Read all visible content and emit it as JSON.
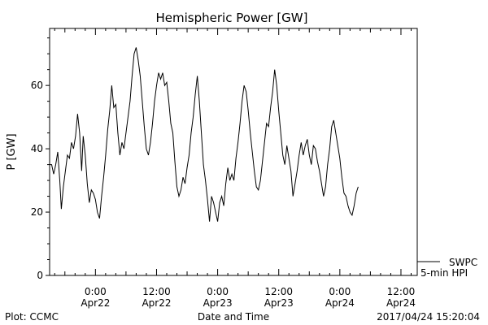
{
  "chart_data": {
    "type": "line",
    "title": "Hemispheric Power [GW]",
    "xlabel": "Date and Time",
    "ylabel": "P [GW]",
    "ylim": [
      0,
      78
    ],
    "x_range_hours": [
      -9.0,
      63.2
    ],
    "x_ticks": [
      {
        "hour": 0,
        "time": "0:00",
        "date": "Apr22"
      },
      {
        "hour": 12,
        "time": "12:00",
        "date": "Apr22"
      },
      {
        "hour": 24,
        "time": "0:00",
        "date": "Apr23"
      },
      {
        "hour": 36,
        "time": "12:00",
        "date": "Apr23"
      },
      {
        "hour": 48,
        "time": "0:00",
        "date": "Apr24"
      },
      {
        "hour": 60,
        "time": "12:00",
        "date": "Apr24"
      }
    ],
    "y_ticks": [
      0,
      20,
      40,
      60
    ],
    "grid": false,
    "legend_position": "right of the plot, beside the bottom of the axes",
    "series": [
      {
        "name": "SWPC",
        "color": "#000000",
        "points": [
          [
            -9.0,
            35
          ],
          [
            -8.6,
            35
          ],
          [
            -8.2,
            32
          ],
          [
            -7.8,
            35
          ],
          [
            -7.4,
            39
          ],
          [
            -7.0,
            30
          ],
          [
            -6.7,
            21
          ],
          [
            -6.3,
            28
          ],
          [
            -5.9,
            33
          ],
          [
            -5.5,
            38
          ],
          [
            -5.1,
            37
          ],
          [
            -4.7,
            42
          ],
          [
            -4.3,
            40
          ],
          [
            -3.9,
            44
          ],
          [
            -3.5,
            51
          ],
          [
            -3.1,
            45
          ],
          [
            -2.7,
            33
          ],
          [
            -2.4,
            44
          ],
          [
            -2.0,
            38
          ],
          [
            -1.6,
            29
          ],
          [
            -1.2,
            23
          ],
          [
            -0.8,
            27
          ],
          [
            -0.4,
            26
          ],
          [
            0.0,
            24
          ],
          [
            0.4,
            20
          ],
          [
            0.8,
            18
          ],
          [
            1.2,
            25
          ],
          [
            1.6,
            31
          ],
          [
            2.0,
            38
          ],
          [
            2.4,
            46
          ],
          [
            2.8,
            52
          ],
          [
            3.2,
            60
          ],
          [
            3.6,
            53
          ],
          [
            4.0,
            54
          ],
          [
            4.4,
            45
          ],
          [
            4.8,
            38
          ],
          [
            5.2,
            42
          ],
          [
            5.6,
            40
          ],
          [
            6.0,
            45
          ],
          [
            6.4,
            50
          ],
          [
            6.8,
            55
          ],
          [
            7.2,
            63
          ],
          [
            7.6,
            70
          ],
          [
            8.0,
            72
          ],
          [
            8.4,
            68
          ],
          [
            8.8,
            63
          ],
          [
            9.2,
            55
          ],
          [
            9.6,
            47
          ],
          [
            10.0,
            40
          ],
          [
            10.4,
            38
          ],
          [
            10.8,
            42
          ],
          [
            11.2,
            48
          ],
          [
            11.6,
            55
          ],
          [
            12.0,
            60
          ],
          [
            12.4,
            64
          ],
          [
            12.8,
            62
          ],
          [
            13.2,
            64
          ],
          [
            13.6,
            60
          ],
          [
            14.0,
            61
          ],
          [
            14.4,
            55
          ],
          [
            14.8,
            48
          ],
          [
            15.2,
            45
          ],
          [
            15.6,
            36
          ],
          [
            16.0,
            28
          ],
          [
            16.4,
            25
          ],
          [
            16.8,
            27
          ],
          [
            17.2,
            31
          ],
          [
            17.6,
            29
          ],
          [
            18.0,
            34
          ],
          [
            18.4,
            38
          ],
          [
            18.8,
            45
          ],
          [
            19.2,
            50
          ],
          [
            19.6,
            57
          ],
          [
            20.0,
            63
          ],
          [
            20.4,
            55
          ],
          [
            20.8,
            45
          ],
          [
            21.2,
            35
          ],
          [
            21.6,
            30
          ],
          [
            22.0,
            24
          ],
          [
            22.4,
            17
          ],
          [
            22.8,
            25
          ],
          [
            23.2,
            23
          ],
          [
            23.6,
            20
          ],
          [
            24.0,
            17
          ],
          [
            24.4,
            23
          ],
          [
            24.8,
            25
          ],
          [
            25.2,
            22
          ],
          [
            25.6,
            29
          ],
          [
            26.0,
            34
          ],
          [
            26.4,
            30
          ],
          [
            26.8,
            32
          ],
          [
            27.2,
            30
          ],
          [
            27.6,
            37
          ],
          [
            28.0,
            42
          ],
          [
            28.4,
            48
          ],
          [
            28.8,
            55
          ],
          [
            29.2,
            60
          ],
          [
            29.6,
            58
          ],
          [
            30.0,
            52
          ],
          [
            30.4,
            45
          ],
          [
            30.8,
            39
          ],
          [
            31.2,
            33
          ],
          [
            31.6,
            28
          ],
          [
            32.0,
            27
          ],
          [
            32.4,
            30
          ],
          [
            32.8,
            36
          ],
          [
            33.2,
            42
          ],
          [
            33.6,
            48
          ],
          [
            34.0,
            47
          ],
          [
            34.4,
            53
          ],
          [
            34.8,
            58
          ],
          [
            35.2,
            65
          ],
          [
            35.6,
            60
          ],
          [
            36.0,
            52
          ],
          [
            36.4,
            45
          ],
          [
            36.8,
            38
          ],
          [
            37.2,
            35
          ],
          [
            37.6,
            41
          ],
          [
            38.0,
            37
          ],
          [
            38.4,
            33
          ],
          [
            38.8,
            25
          ],
          [
            39.2,
            29
          ],
          [
            39.6,
            33
          ],
          [
            40.0,
            38
          ],
          [
            40.4,
            42
          ],
          [
            40.8,
            38
          ],
          [
            41.2,
            41
          ],
          [
            41.6,
            43
          ],
          [
            42.0,
            38
          ],
          [
            42.4,
            35
          ],
          [
            42.8,
            41
          ],
          [
            43.2,
            40
          ],
          [
            43.6,
            36
          ],
          [
            44.0,
            33
          ],
          [
            44.4,
            29
          ],
          [
            44.8,
            25
          ],
          [
            45.2,
            28
          ],
          [
            45.6,
            35
          ],
          [
            46.0,
            40
          ],
          [
            46.4,
            47
          ],
          [
            46.8,
            49
          ],
          [
            47.2,
            45
          ],
          [
            47.6,
            41
          ],
          [
            48.0,
            37
          ],
          [
            48.4,
            31
          ],
          [
            48.8,
            26
          ],
          [
            49.2,
            25
          ],
          [
            49.6,
            22
          ],
          [
            50.0,
            20
          ],
          [
            50.4,
            19
          ],
          [
            50.8,
            22
          ],
          [
            51.2,
            26
          ],
          [
            51.6,
            28
          ]
        ]
      }
    ],
    "legend": [
      "SWPC",
      "5-min HPI"
    ],
    "footer": {
      "left": "Plot: CCMC",
      "center": "Date and Time",
      "right": "2017/04/24 15:20:04"
    }
  }
}
